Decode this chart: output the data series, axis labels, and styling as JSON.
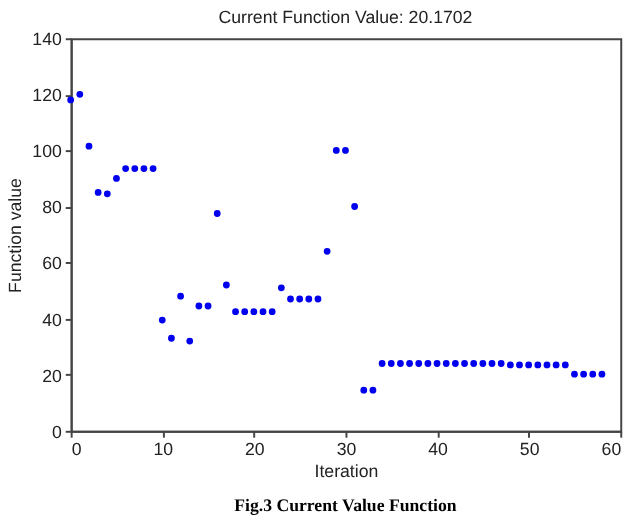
{
  "chart_data": {
    "type": "scatter",
    "title": "Current Function Value: 20.1702",
    "xlabel": "Iteration",
    "ylabel": "Function value",
    "x": [
      0,
      1,
      2,
      3,
      4,
      5,
      6,
      7,
      8,
      9,
      10,
      11,
      12,
      13,
      14,
      15,
      16,
      17,
      18,
      19,
      20,
      21,
      22,
      23,
      24,
      25,
      26,
      27,
      28,
      29,
      30,
      31,
      32,
      33,
      34,
      35,
      36,
      37,
      38,
      39,
      40,
      41,
      42,
      43,
      44,
      45,
      46,
      47,
      48,
      49,
      50,
      51,
      52,
      53,
      54,
      55,
      56,
      57,
      58
    ],
    "series": [
      {
        "color": "#0000ee",
        "values": [
          118,
          120,
          101.5,
          85,
          84.5,
          90,
          93.5,
          93.5,
          93.5,
          93.5,
          39.5,
          33,
          48,
          32,
          44.5,
          44.5,
          77.5,
          52,
          42.5,
          42.5,
          42.5,
          42.5,
          42.5,
          51,
          47,
          47,
          47,
          47,
          64,
          100,
          100,
          80,
          14.5,
          14.5,
          24,
          24,
          24,
          24,
          24,
          24,
          24,
          24,
          24,
          24,
          24,
          24,
          24,
          24,
          23.5,
          23.5,
          23.5,
          23.5,
          23.5,
          23.5,
          23.5,
          20.2,
          20.2,
          20.2,
          20.2
        ]
      }
    ],
    "xlim": [
      0,
      60
    ],
    "ylim": [
      0,
      140
    ],
    "xticks": [
      0,
      10,
      20,
      30,
      40,
      50,
      60
    ],
    "yticks": [
      0,
      20,
      40,
      60,
      80,
      100,
      120,
      140
    ],
    "marker": "circle",
    "grid": false,
    "legend": false,
    "annotations": [
      "Fig.3 Current Value Function"
    ]
  }
}
